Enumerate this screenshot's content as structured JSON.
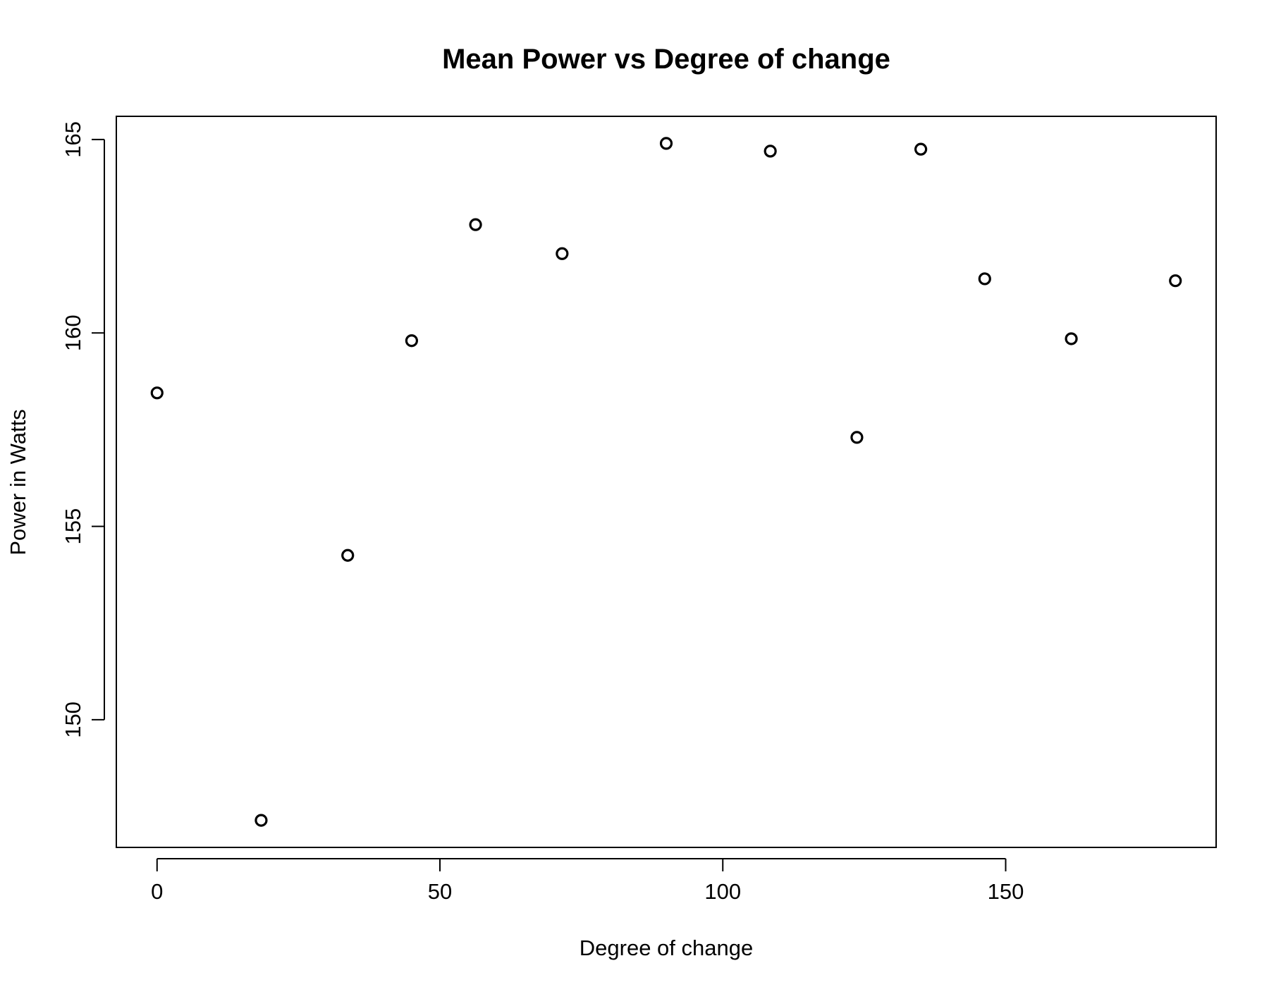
{
  "chart_data": {
    "type": "scatter",
    "title": "Mean Power vs Degree of change",
    "xlabel": "Degree of change",
    "ylabel": "Power in Watts",
    "xlim": [
      -7.2,
      187.2
    ],
    "ylim": [
      146.7,
      165.6
    ],
    "xticks": [
      0,
      50,
      100,
      150
    ],
    "yticks": [
      150,
      155,
      160,
      165
    ],
    "grid": false,
    "legend": "none",
    "marker": "open-circle",
    "color": "#000000",
    "x": [
      0,
      18.4,
      33.7,
      45,
      56.3,
      71.6,
      90,
      108.4,
      123.7,
      135,
      146.3,
      161.6,
      180
    ],
    "y": [
      158.45,
      147.4,
      154.25,
      159.8,
      162.8,
      162.05,
      164.9,
      164.7,
      157.3,
      164.75,
      161.4,
      159.85,
      161.35
    ]
  }
}
